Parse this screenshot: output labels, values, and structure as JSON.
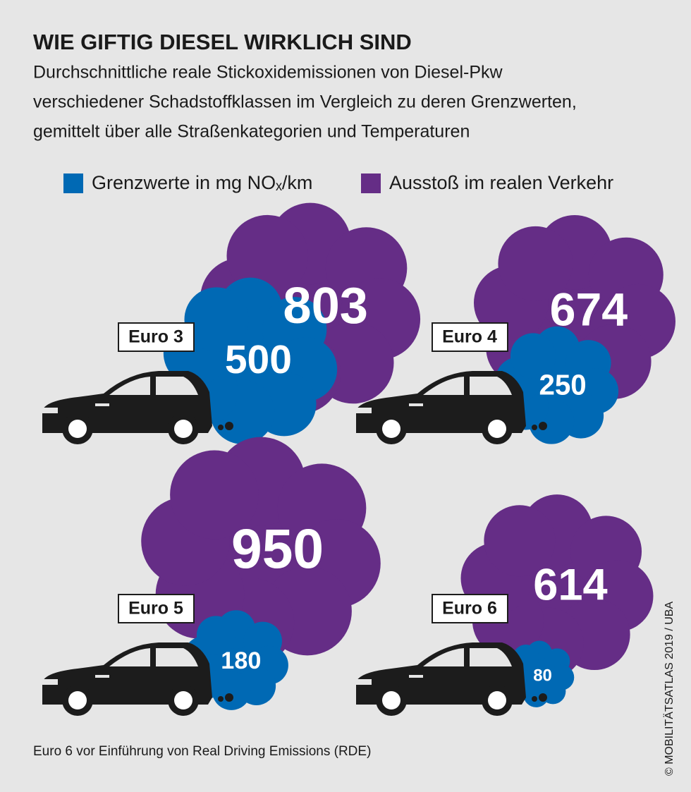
{
  "chart_data": {
    "type": "cloud",
    "title": "WIE GIFTIG DIESEL WIRKLICH SIND",
    "subtitle": [
      "Durchschnittliche reale Stickoxidemissionen von Diesel-Pkw",
      "verschiedener Schadstoffklassen im Vergleich zu deren Grenzwerten,",
      "gemittelt über alle Straßenkategorien und Temperaturen"
    ],
    "categories": [
      "Euro 3",
      "Euro 4",
      "Euro 5",
      "Euro 6"
    ],
    "series": [
      {
        "name": "Ausstoß im realen Verkehr",
        "color": "#652d86",
        "values": [
          803,
          674,
          950,
          614
        ]
      },
      {
        "name": "Grenzwerte in mg NOₓ/km",
        "color": "#0069b4",
        "values": [
          500,
          250,
          180,
          80
        ]
      }
    ],
    "footnote": "Euro 6 vor Einführung von Real Driving Emissions (RDE)",
    "credit": "© MOBILITÄTSATLAS 2019 / UBA"
  }
}
